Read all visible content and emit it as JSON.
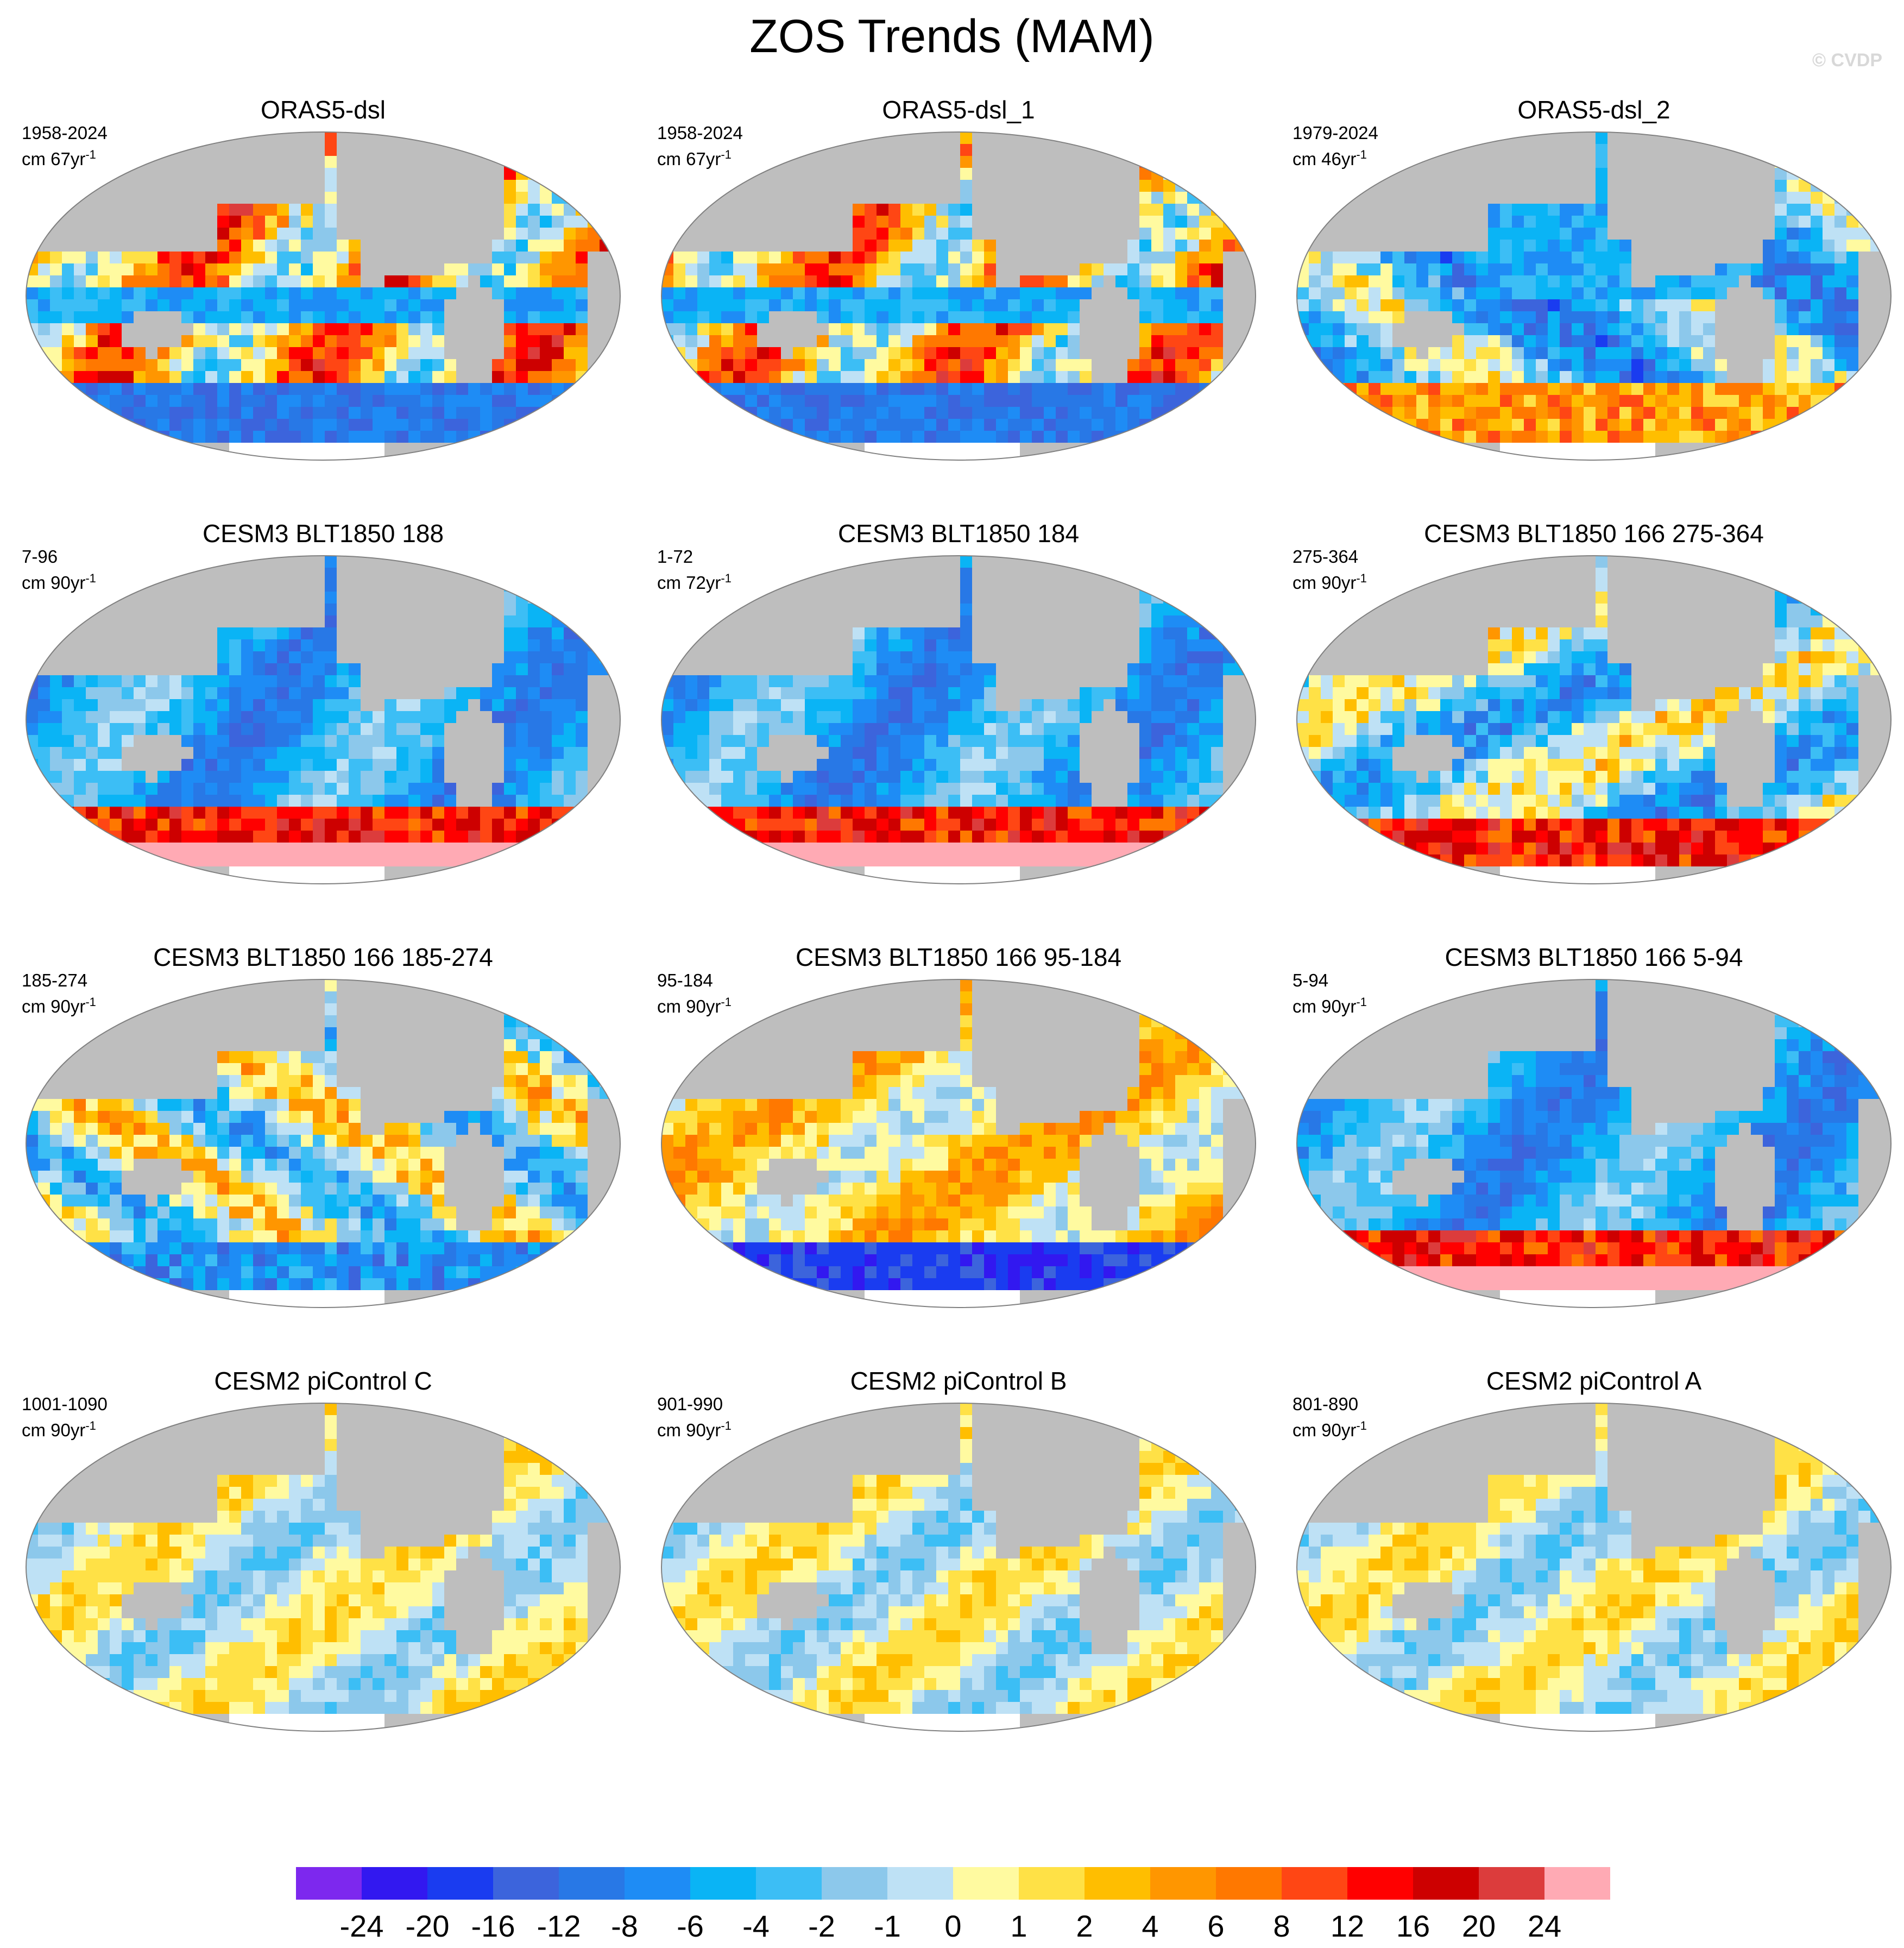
{
  "title": "ZOS Trends (MAM)",
  "watermark": "© CVDP",
  "colors": {
    "land": "#bebebe",
    "ice": "#ffffff",
    "outline": "#808080"
  },
  "panels": [
    {
      "title": "ORAS5-dsl",
      "period": "1958-2024",
      "units": "cm 67yr",
      "units_exp": "-1",
      "pattern": "oras"
    },
    {
      "title": "ORAS5-dsl_1",
      "period": "1958-2024",
      "units": "cm 67yr",
      "units_exp": "-1",
      "pattern": "oras"
    },
    {
      "title": "ORAS5-dsl_2",
      "period": "1979-2024",
      "units": "cm 46yr",
      "units_exp": "-1",
      "pattern": "oras2"
    },
    {
      "title": "CESM3 BLT1850 188",
      "period": "7-96",
      "units": "cm 90yr",
      "units_exp": "-1",
      "pattern": "neg_so_pos"
    },
    {
      "title": "CESM3 BLT1850 184",
      "period": "1-72",
      "units": "cm 72yr",
      "units_exp": "-1",
      "pattern": "neg_so_pos"
    },
    {
      "title": "CESM3 BLT1850 166 275-364",
      "period": "275-364",
      "units": "cm 90yr",
      "units_exp": "-1",
      "pattern": "mixed_so_pos"
    },
    {
      "title": "CESM3 BLT1850 166 185-274",
      "period": "185-274",
      "units": "cm 90yr",
      "units_exp": "-1",
      "pattern": "mixed"
    },
    {
      "title": "CESM3 BLT1850 166 95-184",
      "period": "95-184",
      "units": "cm 90yr",
      "units_exp": "-1",
      "pattern": "pos_so_neg"
    },
    {
      "title": "CESM3 BLT1850 166 5-94",
      "period": "5-94",
      "units": "cm 90yr",
      "units_exp": "-1",
      "pattern": "neg_so_pos"
    },
    {
      "title": "CESM2 piControl C",
      "period": "1001-1090",
      "units": "cm 90yr",
      "units_exp": "-1",
      "pattern": "weak"
    },
    {
      "title": "CESM2 piControl B",
      "period": "901-990",
      "units": "cm 90yr",
      "units_exp": "-1",
      "pattern": "weak"
    },
    {
      "title": "CESM2 piControl A",
      "period": "801-890",
      "units": "cm 90yr",
      "units_exp": "-1",
      "pattern": "weak"
    }
  ],
  "colorbar": {
    "colors": [
      "#7d28ee",
      "#3218f0",
      "#1a3cf0",
      "#3c64dc",
      "#2878e6",
      "#1e8cf5",
      "#0ab4f5",
      "#3cbef5",
      "#8cc8eb",
      "#bee1f5",
      "#fffaa0",
      "#ffe146",
      "#ffbe00",
      "#ff9600",
      "#ff7800",
      "#ff4614",
      "#ff0000",
      "#cd0000",
      "#dc3c3c",
      "#ffaab4"
    ],
    "labels": [
      "-24",
      "-20",
      "-16",
      "-12",
      "-8",
      "-6",
      "-4",
      "-2",
      "-1",
      "0",
      "1",
      "2",
      "4",
      "6",
      "8",
      "12",
      "16",
      "20",
      "24"
    ]
  }
}
